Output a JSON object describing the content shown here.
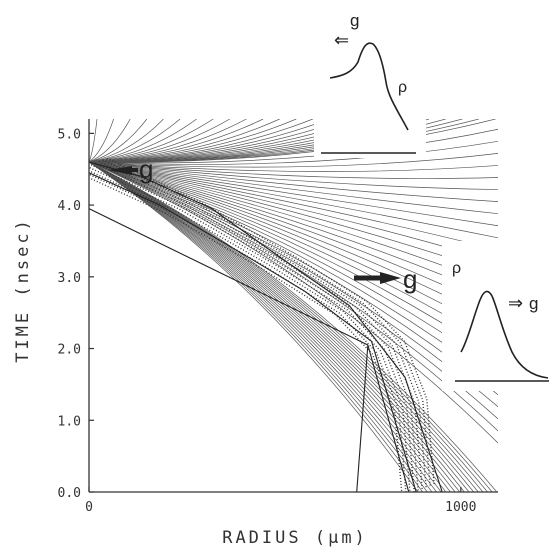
{
  "chart_data": {
    "type": "line",
    "title": "",
    "xlabel": "RADIUS (μm)",
    "ylabel": "TIME (nsec)",
    "xlim": [
      0,
      1100
    ],
    "ylim": [
      0,
      5.2
    ],
    "x_ticks": [
      "0",
      "1000"
    ],
    "y_ticks": [
      "0.0",
      "1.0",
      "2.0",
      "3.0",
      "4.0",
      "5.0"
    ],
    "grid": false,
    "legend": "none",
    "series": [
      {
        "values": [
          [
            0,
            3.95
          ],
          [
            750,
            2.05
          ],
          [
            860,
            0
          ]
        ]
      },
      {
        "values": [
          [
            0,
            4.45
          ],
          [
            190,
            4.0
          ],
          [
            420,
            3.3
          ],
          [
            580,
            2.8
          ],
          [
            760,
            2.1
          ],
          [
            880,
            0
          ]
        ]
      },
      {
        "values": [
          [
            0,
            4.6
          ],
          [
            140,
            4.4
          ],
          [
            330,
            3.95
          ],
          [
            520,
            3.25
          ],
          [
            700,
            2.6
          ],
          [
            850,
            1.6
          ],
          [
            950,
            0
          ]
        ]
      },
      {
        "values": [
          [
            720,
            0
          ],
          [
            750,
            2.05
          ]
        ]
      }
    ],
    "fan_lines": {
      "origin": [
        0,
        4.6
      ],
      "count": 70
    },
    "dense_band": [
      [
        0,
        4.55
      ],
      [
        250,
        3.95
      ],
      [
        500,
        3.2
      ],
      [
        700,
        2.55
      ],
      [
        800,
        2.0
      ],
      [
        860,
        1.2
      ],
      [
        880,
        0
      ]
    ],
    "annotations": [
      {
        "label": "g",
        "at": [
          30,
          4.6
        ],
        "direction": "left"
      },
      {
        "label": "g",
        "at": [
          540,
          3.0
        ],
        "direction": "right"
      }
    ],
    "insets": [
      {
        "position": "top-right",
        "labels": [
          "g",
          "ρ"
        ],
        "arrow": "⇐"
      },
      {
        "position": "right",
        "labels": [
          "ρ",
          "g"
        ],
        "arrow": "⇒"
      }
    ]
  }
}
